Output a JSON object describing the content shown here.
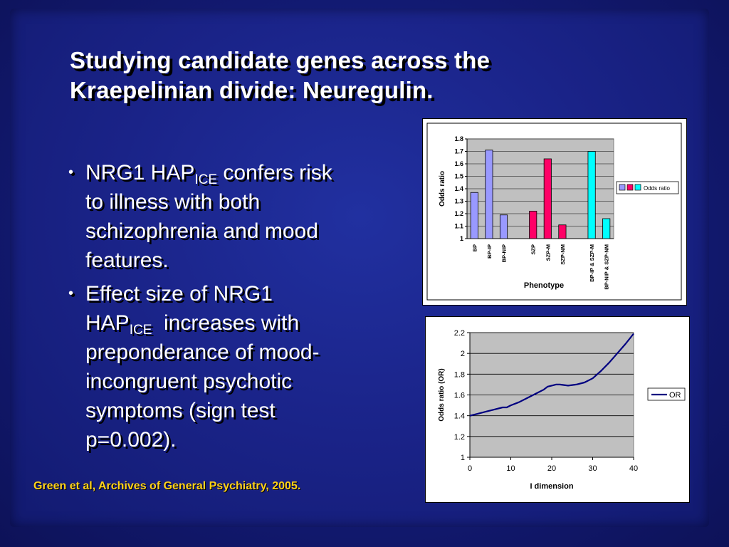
{
  "slide": {
    "title_line1": "Studying candidate genes across the",
    "title_line2": "Kraepelinian divide: Neuregulin.",
    "bullets": [
      {
        "bullet_char": "•",
        "pre": "NRG1 HAP",
        "sub": "ICE",
        "line1_rest": " confers risk",
        "lines": [
          "to illness with both",
          "schizophrenia and mood",
          "features."
        ]
      },
      {
        "bullet_char": "•",
        "line0": "Effect size of NRG1",
        "pre": "HAP",
        "sub": "ICE",
        "line1_rest": "  increases with",
        "lines": [
          "preponderance of mood-",
          "incongruent psychotic",
          "symptoms (sign test",
          "p=0.002)."
        ]
      }
    ],
    "citation": "Green et al, Archives of General Psychiatry, 2005."
  },
  "chart_data": [
    {
      "type": "bar",
      "categories": [
        "BP",
        "BP-IP",
        "BP-NIP",
        "SZP",
        "SZP-M",
        "SZP-NM",
        "BP-IP & SZP-M",
        "BP-NIP & SZP-NM"
      ],
      "groups": [
        [
          0,
          1,
          2
        ],
        [
          3,
          4,
          5
        ],
        [
          6,
          7
        ]
      ],
      "series": [
        {
          "name": "Odds ratio",
          "values": [
            1.37,
            1.71,
            1.19,
            1.22,
            1.64,
            1.11,
            1.7,
            1.16
          ]
        }
      ],
      "bar_colors": [
        "#9999ff",
        "#9999ff",
        "#9999ff",
        "#ff0066",
        "#ff0066",
        "#ff0066",
        "#00ffff",
        "#00ffff"
      ],
      "legend_swatches": [
        "#9999ff",
        "#ff0066",
        "#00ffff"
      ],
      "xlabel": "Phenotype",
      "ylabel": "Odds ratio",
      "ylim": [
        1,
        1.8
      ],
      "yticks": [
        "1",
        "1.1",
        "1.2",
        "1.3",
        "1.4",
        "1.5",
        "1.6",
        "1.7",
        "1.8"
      ],
      "legend_label": "Odds ratio",
      "legend_position": "right",
      "grid": true,
      "plot_bg": "#c0c0c0"
    },
    {
      "type": "line",
      "series": [
        {
          "name": "OR",
          "x": [
            0,
            2,
            4,
            6,
            8,
            9,
            10,
            12,
            14,
            16,
            18,
            19,
            20,
            21,
            22,
            24,
            26,
            28,
            30,
            32,
            34,
            36,
            38,
            40
          ],
          "y": [
            1.4,
            1.42,
            1.44,
            1.46,
            1.48,
            1.48,
            1.5,
            1.53,
            1.57,
            1.61,
            1.65,
            1.68,
            1.69,
            1.7,
            1.7,
            1.69,
            1.7,
            1.72,
            1.76,
            1.83,
            1.91,
            2.0,
            2.09,
            2.19
          ]
        }
      ],
      "xlabel": "I dimension",
      "ylabel": "Odds ratio (OR)",
      "xlim": [
        0,
        40
      ],
      "ylim": [
        1,
        2.2
      ],
      "xticks": [
        "0",
        "10",
        "20",
        "30",
        "40"
      ],
      "yticks": [
        "1",
        "1.2",
        "1.4",
        "1.6",
        "1.8",
        "2",
        "2.2"
      ],
      "line_color": "#000080",
      "grid": true,
      "legend_position": "right",
      "plot_bg": "#c0c0c0"
    }
  ]
}
